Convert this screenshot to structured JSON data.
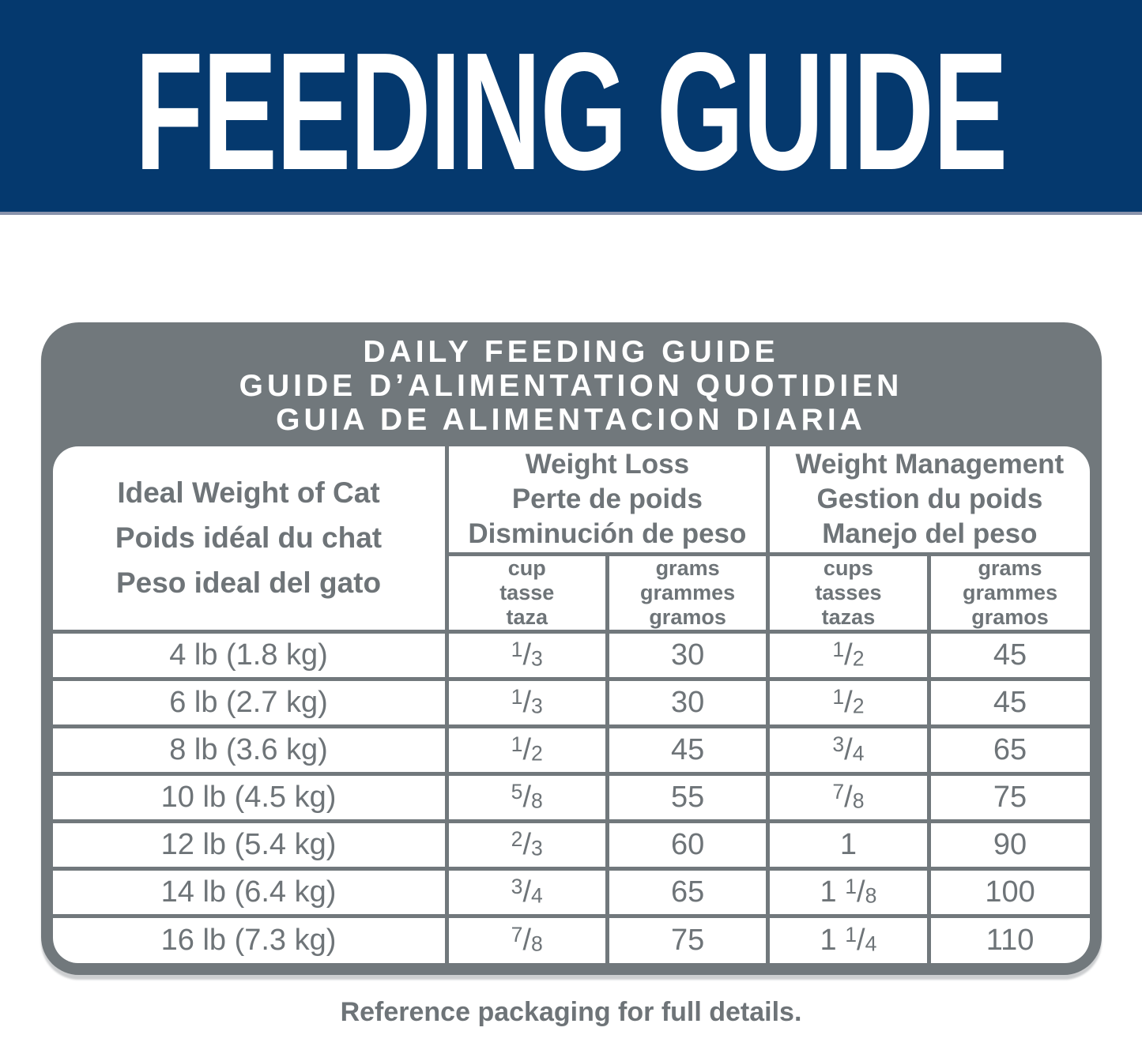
{
  "colors": {
    "banner_navy": "#05396e",
    "card_gray": "#71787c",
    "text_gray": "#6e7478",
    "white": "#ffffff"
  },
  "banner": {
    "title": "FEEDING GUIDE"
  },
  "card_title": {
    "line1": "DAILY FEEDING GUIDE",
    "line2": "GUIDE D’ALIMENTATION QUOTIDIEN",
    "line3": "GUIA DE ALIMENTACION DIARIA"
  },
  "table": {
    "corner": {
      "line1": "Ideal Weight of Cat",
      "line2": "Poids idéal du chat",
      "line3": "Peso ideal del gato"
    },
    "weight_loss": {
      "line1": "Weight Loss",
      "line2": "Perte de poids",
      "line3": "Disminución de peso"
    },
    "weight_management": {
      "line1": "Weight Management",
      "line2": "Gestion du poids",
      "line3": "Manejo del peso"
    },
    "subheaders": {
      "loss_cups": {
        "line1": "cup",
        "line2": "tasse",
        "line3": "taza"
      },
      "loss_grams": {
        "line1": "grams",
        "line2": "grammes",
        "line3": "gramos"
      },
      "mgmt_cups": {
        "line1": "cups",
        "line2": "tasses",
        "line3": "tazas"
      },
      "mgmt_grams": {
        "line1": "grams",
        "line2": "grammes",
        "line3": "gramos"
      }
    },
    "rows": [
      {
        "weight": "4 lb (1.8 kg)",
        "loss_cup": {
          "whole": "",
          "num": "1",
          "slash": "/",
          "den": "3"
        },
        "loss_grams": "30",
        "mgmt_cup": {
          "whole": "",
          "num": "1",
          "slash": "/",
          "den": "2"
        },
        "mgmt_grams": "45"
      },
      {
        "weight": "6 lb (2.7 kg)",
        "loss_cup": {
          "whole": "",
          "num": "1",
          "slash": "/",
          "den": "3"
        },
        "loss_grams": "30",
        "mgmt_cup": {
          "whole": "",
          "num": "1",
          "slash": "/",
          "den": "2"
        },
        "mgmt_grams": "45"
      },
      {
        "weight": "8 lb (3.6 kg)",
        "loss_cup": {
          "whole": "",
          "num": "1",
          "slash": "/",
          "den": "2"
        },
        "loss_grams": "45",
        "mgmt_cup": {
          "whole": "",
          "num": "3",
          "slash": "/",
          "den": "4"
        },
        "mgmt_grams": "65"
      },
      {
        "weight": "10 lb (4.5 kg)",
        "loss_cup": {
          "whole": "",
          "num": "5",
          "slash": "/",
          "den": "8"
        },
        "loss_grams": "55",
        "mgmt_cup": {
          "whole": "",
          "num": "7",
          "slash": "/",
          "den": "8"
        },
        "mgmt_grams": "75"
      },
      {
        "weight": "12 lb (5.4 kg)",
        "loss_cup": {
          "whole": "",
          "num": "2",
          "slash": "/",
          "den": "3"
        },
        "loss_grams": "60",
        "mgmt_cup": {
          "whole": "1",
          "num": "",
          "slash": "",
          "den": ""
        },
        "mgmt_grams": "90"
      },
      {
        "weight": "14 lb (6.4 kg)",
        "loss_cup": {
          "whole": "",
          "num": "3",
          "slash": "/",
          "den": "4"
        },
        "loss_grams": "65",
        "mgmt_cup": {
          "whole": "1 ",
          "num": "1",
          "slash": "/",
          "den": "8"
        },
        "mgmt_grams": "100"
      },
      {
        "weight": "16 lb (7.3 kg)",
        "loss_cup": {
          "whole": "",
          "num": "7",
          "slash": "/",
          "den": "8"
        },
        "loss_grams": "75",
        "mgmt_cup": {
          "whole": "1 ",
          "num": "1",
          "slash": "/",
          "den": "4"
        },
        "mgmt_grams": "110"
      }
    ]
  },
  "footer": {
    "note": "Reference packaging for full details."
  }
}
